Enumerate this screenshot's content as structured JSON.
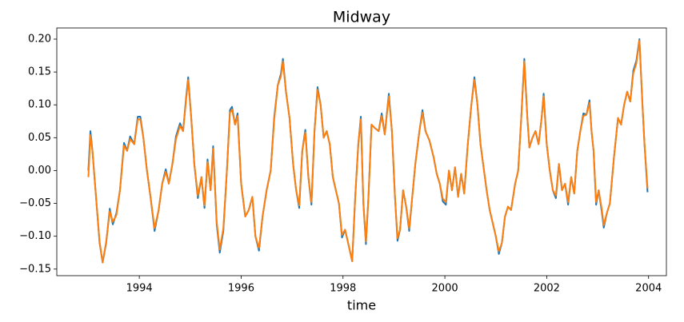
{
  "chart_data": {
    "type": "line",
    "title": "Midway",
    "xlabel": "time",
    "xlim": [
      1992.38,
      2004.35
    ],
    "xticks": [
      1994,
      1996,
      1998,
      2000,
      2002,
      2004
    ],
    "ylim": [
      -0.16,
      0.217
    ],
    "yticks": [
      {
        "value": -0.15,
        "label": "−0.15"
      },
      {
        "value": -0.1,
        "label": "−0.10"
      },
      {
        "value": -0.05,
        "label": "−0.05"
      },
      {
        "value": 0,
        "label": "0.00"
      },
      {
        "value": 0.05,
        "label": "0.05"
      },
      {
        "value": 0.1,
        "label": "0.10"
      },
      {
        "value": 0.15,
        "label": "0.15"
      },
      {
        "value": 0.2,
        "label": "0.20"
      }
    ],
    "grid": false,
    "x": [
      1993.0,
      1993.04,
      1993.08,
      1993.15,
      1993.22,
      1993.28,
      1993.35,
      1993.42,
      1993.48,
      1993.55,
      1993.62,
      1993.7,
      1993.76,
      1993.82,
      1993.9,
      1993.97,
      1994.02,
      1994.08,
      1994.15,
      1994.22,
      1994.3,
      1994.38,
      1994.45,
      1994.52,
      1994.58,
      1994.65,
      1994.72,
      1994.8,
      1994.86,
      1994.92,
      1994.96,
      1995.02,
      1995.08,
      1995.15,
      1995.22,
      1995.28,
      1995.34,
      1995.4,
      1995.45,
      1995.52,
      1995.58,
      1995.65,
      1995.72,
      1995.78,
      1995.82,
      1995.88,
      1995.93,
      1996.0,
      1996.08,
      1996.15,
      1996.22,
      1996.28,
      1996.35,
      1996.42,
      1996.5,
      1996.58,
      1996.65,
      1996.72,
      1996.78,
      1996.82,
      1996.88,
      1996.95,
      1997.02,
      1997.08,
      1997.14,
      1997.2,
      1997.26,
      1997.32,
      1997.38,
      1997.44,
      1997.5,
      1997.56,
      1997.62,
      1997.68,
      1997.74,
      1997.8,
      1997.86,
      1997.92,
      1997.98,
      1998.04,
      1998.1,
      1998.18,
      1998.24,
      1998.3,
      1998.35,
      1998.4,
      1998.45,
      1998.5,
      1998.56,
      1998.62,
      1998.7,
      1998.76,
      1998.82,
      1998.9,
      1998.96,
      1999.02,
      1999.07,
      1999.12,
      1999.18,
      1999.24,
      1999.3,
      1999.36,
      1999.42,
      1999.5,
      1999.56,
      1999.62,
      1999.7,
      1999.78,
      1999.84,
      1999.9,
      1999.96,
      2000.02,
      2000.08,
      2000.14,
      2000.2,
      2000.26,
      2000.32,
      2000.38,
      2000.45,
      2000.52,
      2000.58,
      2000.64,
      2000.7,
      2000.76,
      2000.82,
      2000.88,
      2000.94,
      2001.0,
      2001.06,
      2001.12,
      2001.18,
      2001.24,
      2001.3,
      2001.38,
      2001.44,
      2001.5,
      2001.56,
      2001.62,
      2001.66,
      2001.72,
      2001.78,
      2001.84,
      2001.9,
      2001.94,
      2002.0,
      2002.06,
      2002.12,
      2002.18,
      2002.24,
      2002.3,
      2002.36,
      2002.42,
      2002.48,
      2002.54,
      2002.6,
      2002.66,
      2002.72,
      2002.78,
      2002.84,
      2002.88,
      2002.92,
      2002.97,
      2003.02,
      2003.08,
      2003.12,
      2003.18,
      2003.24,
      2003.32,
      2003.4,
      2003.46,
      2003.52,
      2003.58,
      2003.64,
      2003.7,
      2003.76,
      2003.82,
      2003.88,
      2003.92,
      2003.98
    ],
    "series": [
      {
        "color": "#1f77b4",
        "values": [
          0.0,
          0.06,
          0.03,
          -0.04,
          -0.11,
          -0.14,
          -0.11,
          -0.058,
          -0.082,
          -0.065,
          -0.03,
          0.042,
          0.03,
          0.052,
          0.04,
          0.082,
          0.082,
          0.05,
          0.0,
          -0.04,
          -0.092,
          -0.06,
          -0.02,
          0.002,
          -0.02,
          0.01,
          0.052,
          0.072,
          0.06,
          0.112,
          0.142,
          0.08,
          0.01,
          -0.042,
          -0.01,
          -0.057,
          0.017,
          -0.03,
          0.037,
          -0.082,
          -0.125,
          -0.092,
          0.0,
          0.092,
          0.097,
          0.07,
          0.087,
          -0.02,
          -0.07,
          -0.06,
          -0.04,
          -0.1,
          -0.122,
          -0.07,
          -0.03,
          0.0,
          0.082,
          0.13,
          0.147,
          0.17,
          0.12,
          0.08,
          0.01,
          -0.03,
          -0.057,
          0.03,
          0.062,
          -0.01,
          -0.052,
          0.06,
          0.127,
          0.1,
          0.05,
          0.06,
          0.04,
          -0.01,
          -0.03,
          -0.05,
          -0.102,
          -0.09,
          -0.11,
          -0.138,
          -0.04,
          0.04,
          0.082,
          -0.05,
          -0.112,
          -0.04,
          0.07,
          0.065,
          0.06,
          0.087,
          0.055,
          0.117,
          0.06,
          -0.04,
          -0.107,
          -0.09,
          -0.03,
          -0.055,
          -0.092,
          -0.04,
          0.01,
          0.06,
          0.092,
          0.06,
          0.045,
          0.02,
          -0.005,
          -0.02,
          -0.047,
          -0.052,
          0.0,
          -0.03,
          0.005,
          -0.04,
          -0.005,
          -0.035,
          0.04,
          0.1,
          0.142,
          0.1,
          0.04,
          0.005,
          -0.03,
          -0.06,
          -0.08,
          -0.1,
          -0.127,
          -0.11,
          -0.07,
          -0.055,
          -0.06,
          -0.02,
          0.0,
          0.08,
          0.17,
          0.08,
          0.035,
          0.05,
          0.06,
          0.04,
          0.08,
          0.117,
          0.04,
          0.0,
          -0.03,
          -0.042,
          0.01,
          -0.03,
          -0.02,
          -0.052,
          -0.01,
          -0.035,
          0.03,
          0.06,
          0.087,
          0.085,
          0.107,
          0.06,
          0.03,
          -0.052,
          -0.03,
          -0.062,
          -0.087,
          -0.065,
          -0.05,
          0.02,
          0.08,
          0.07,
          0.1,
          0.12,
          0.105,
          0.152,
          0.167,
          0.2,
          0.1,
          0.04,
          -0.033
        ]
      },
      {
        "color": "#ff7f0e",
        "values": [
          -0.01,
          0.054,
          0.03,
          -0.04,
          -0.108,
          -0.14,
          -0.108,
          -0.062,
          -0.078,
          -0.068,
          -0.03,
          0.038,
          0.03,
          0.048,
          0.04,
          0.078,
          0.078,
          0.05,
          0.0,
          -0.04,
          -0.088,
          -0.06,
          -0.02,
          -0.002,
          -0.02,
          0.01,
          0.048,
          0.068,
          0.06,
          0.108,
          0.138,
          0.08,
          0.01,
          -0.038,
          -0.01,
          -0.053,
          0.013,
          -0.03,
          0.033,
          -0.078,
          -0.12,
          -0.088,
          0.0,
          0.088,
          0.093,
          0.07,
          0.083,
          -0.02,
          -0.07,
          -0.06,
          -0.04,
          -0.1,
          -0.118,
          -0.07,
          -0.03,
          0.0,
          0.078,
          0.13,
          0.143,
          0.166,
          0.12,
          0.08,
          0.01,
          -0.03,
          -0.053,
          0.03,
          0.058,
          -0.01,
          -0.048,
          0.06,
          0.123,
          0.1,
          0.05,
          0.06,
          0.04,
          -0.01,
          -0.03,
          -0.05,
          -0.098,
          -0.09,
          -0.11,
          -0.138,
          -0.04,
          0.04,
          0.078,
          -0.05,
          -0.108,
          -0.04,
          0.07,
          0.065,
          0.06,
          0.083,
          0.055,
          0.113,
          0.06,
          -0.04,
          -0.103,
          -0.09,
          -0.03,
          -0.055,
          -0.088,
          -0.04,
          0.01,
          0.06,
          0.088,
          0.06,
          0.045,
          0.02,
          -0.005,
          -0.02,
          -0.043,
          -0.048,
          0.0,
          -0.03,
          0.005,
          -0.04,
          -0.005,
          -0.035,
          0.04,
          0.1,
          0.138,
          0.1,
          0.04,
          0.005,
          -0.03,
          -0.06,
          -0.08,
          -0.1,
          -0.123,
          -0.11,
          -0.07,
          -0.055,
          -0.06,
          -0.02,
          0.0,
          0.08,
          0.166,
          0.08,
          0.035,
          0.05,
          0.06,
          0.04,
          0.08,
          0.113,
          0.04,
          0.0,
          -0.03,
          -0.038,
          0.01,
          -0.03,
          -0.02,
          -0.048,
          -0.01,
          -0.035,
          0.03,
          0.06,
          0.083,
          0.085,
          0.103,
          0.06,
          0.03,
          -0.048,
          -0.03,
          -0.058,
          -0.083,
          -0.065,
          -0.05,
          0.02,
          0.08,
          0.07,
          0.1,
          0.12,
          0.105,
          0.148,
          0.163,
          0.198,
          0.1,
          0.04,
          -0.027
        ]
      }
    ]
  }
}
